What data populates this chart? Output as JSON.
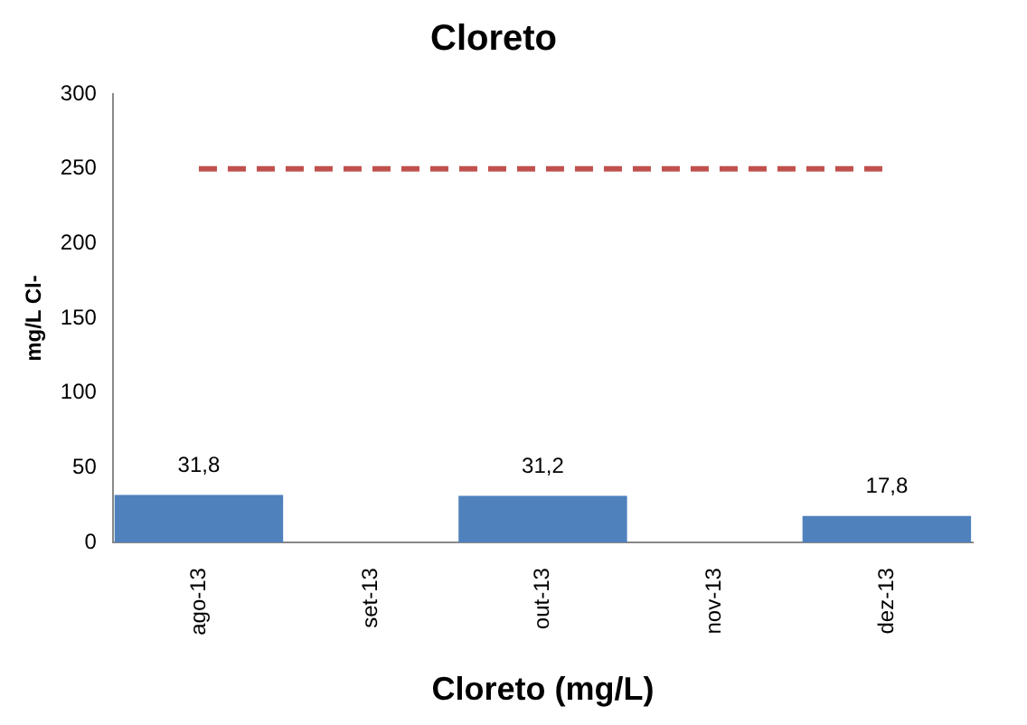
{
  "chart_data": {
    "type": "bar",
    "title": "Cloreto",
    "xlabel": "Cloreto (mg/L)",
    "ylabel": "mg/L Cl-",
    "categories": [
      "ago-13",
      "set-13",
      "out-13",
      "nov-13",
      "dez-13"
    ],
    "series": [
      {
        "color": "#4f81bd",
        "values": [
          31.8,
          null,
          31.2,
          null,
          17.8
        ],
        "value_labels": [
          "31,8",
          null,
          "31,2",
          null,
          "17,8"
        ]
      },
      {
        "type": "line",
        "color": "#c0504d",
        "line_style": "dashed",
        "marker": "none",
        "values": [
          250,
          250,
          250,
          250,
          250
        ]
      }
    ],
    "ylim": [
      0,
      300
    ],
    "yticks": [
      0,
      50,
      100,
      150,
      200,
      250,
      300
    ],
    "grid": false,
    "legend": false
  }
}
